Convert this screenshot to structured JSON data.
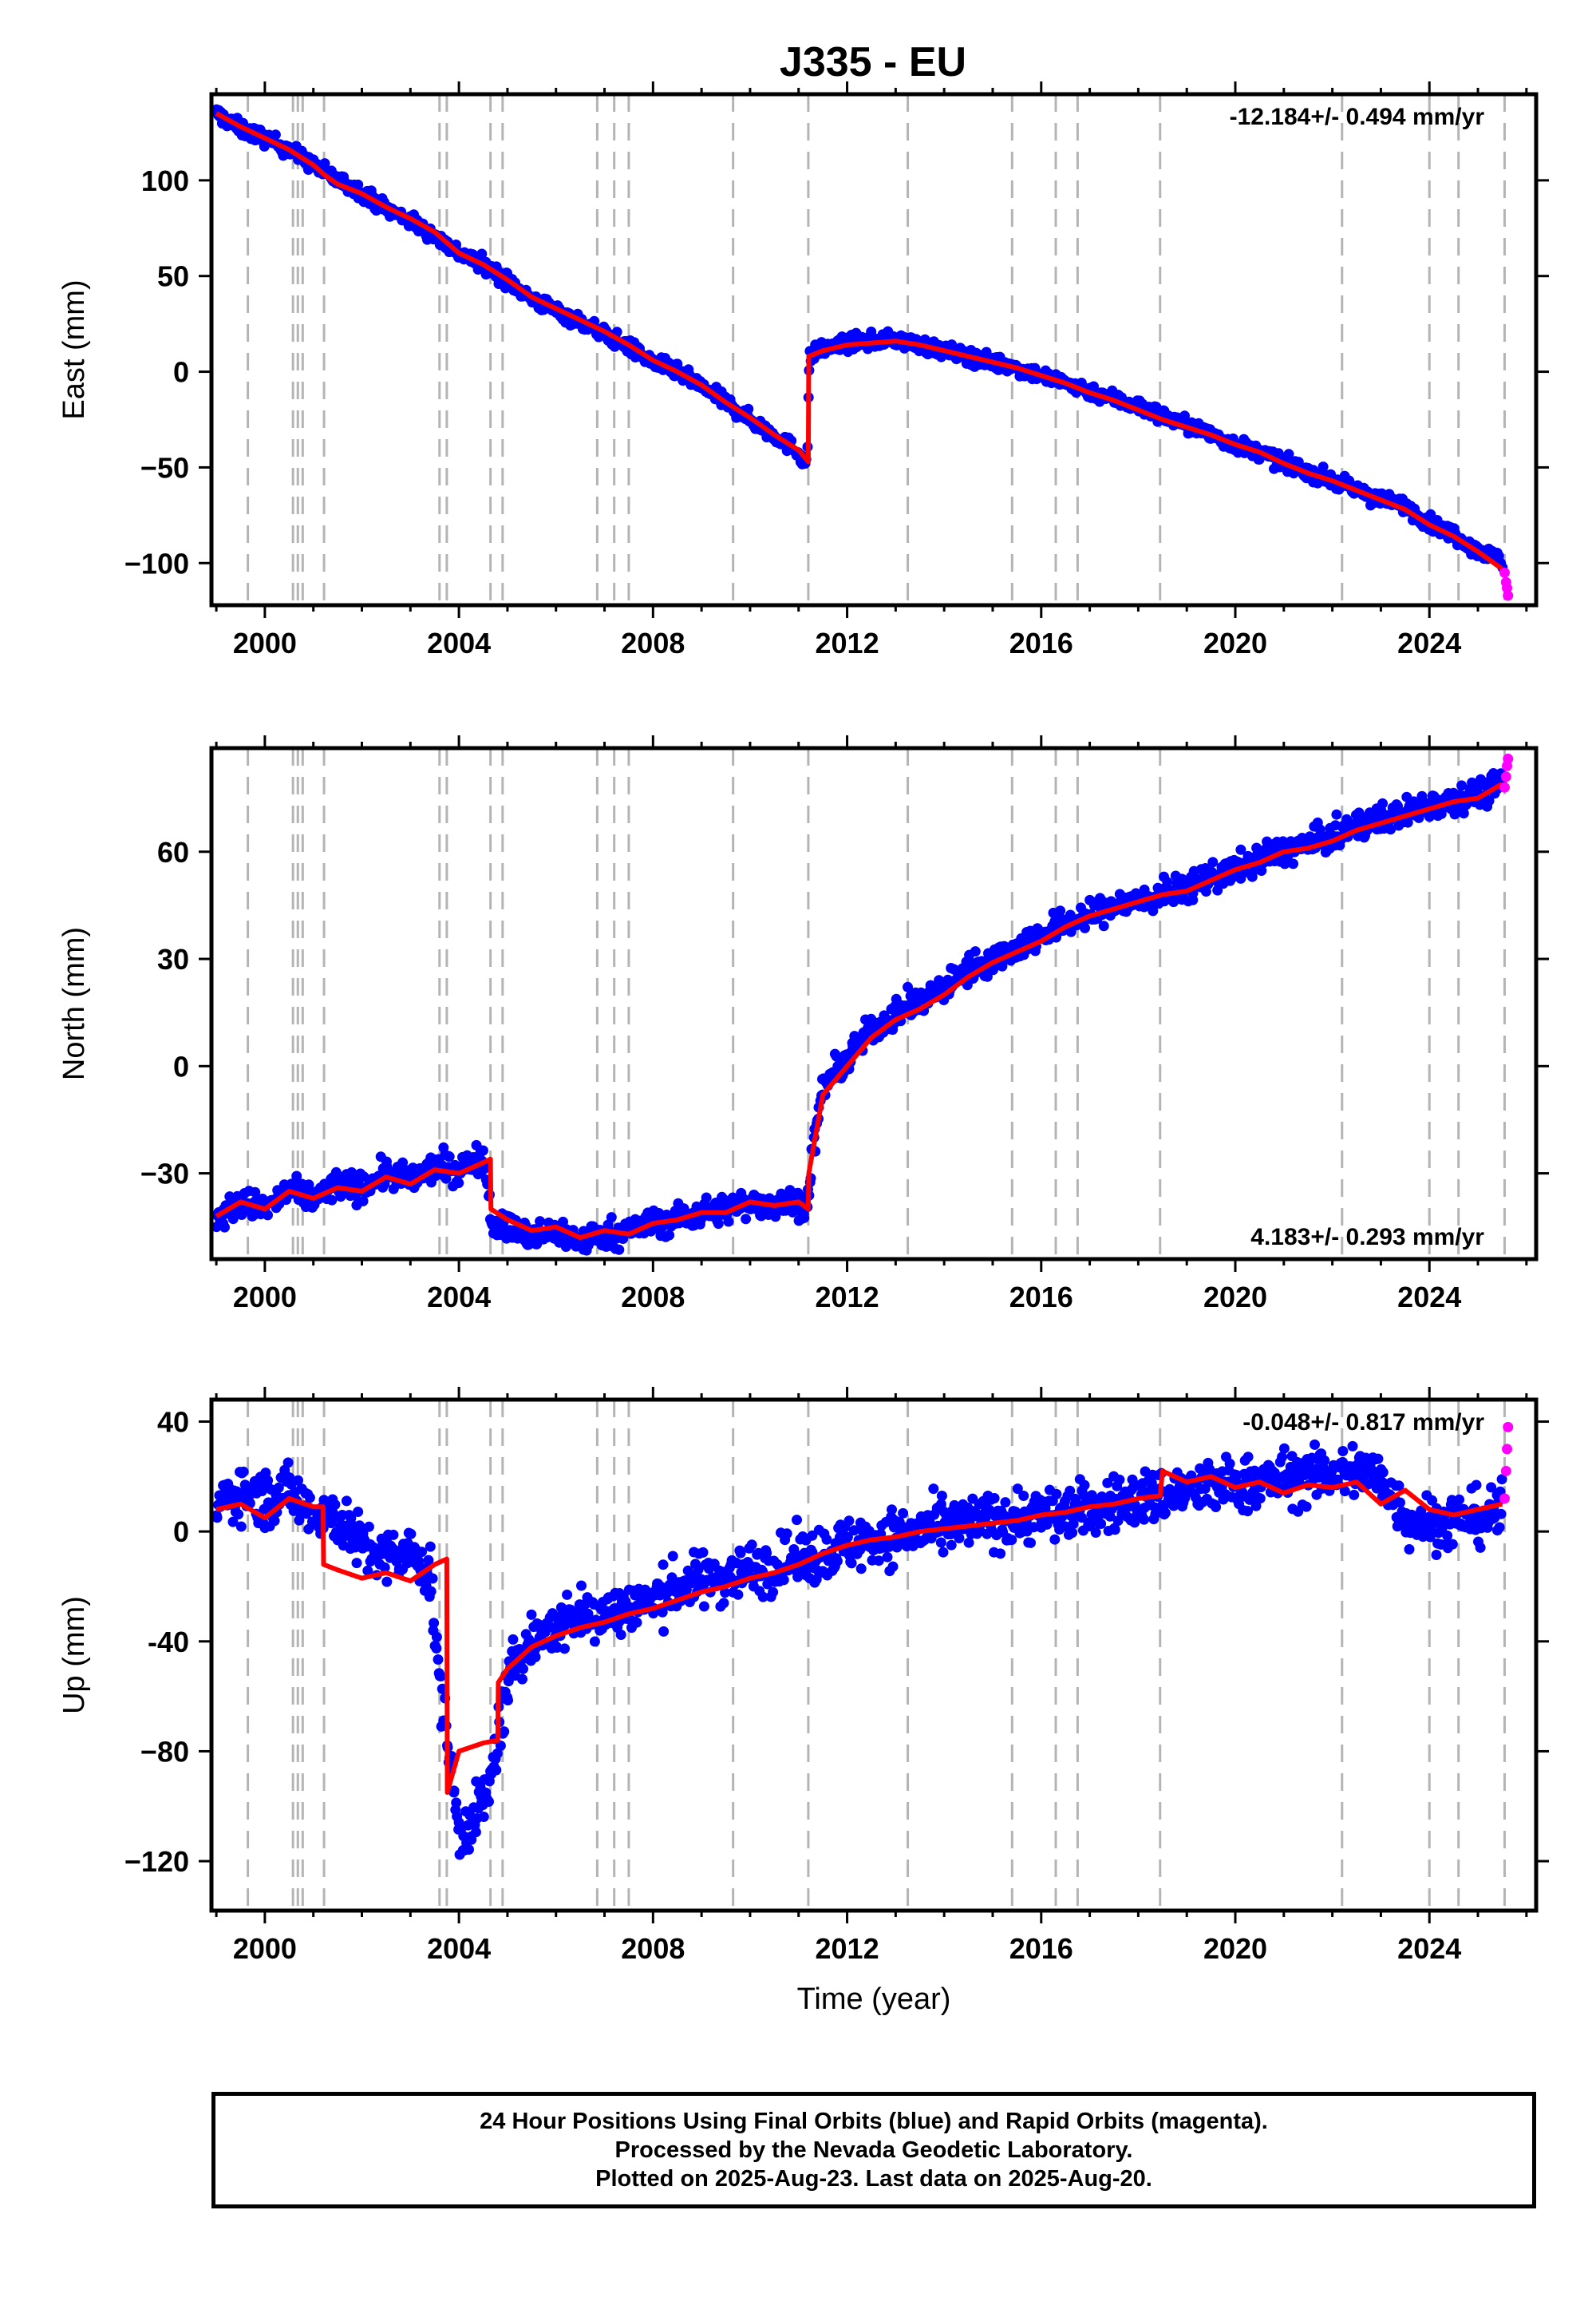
{
  "title": "J335 - EU",
  "colors": {
    "final_orbits": "#0000ff",
    "rapid_orbits": "#ff00ff",
    "model": "#ff0000",
    "event_lines": "#b4b4b4",
    "axes": "#000000"
  },
  "footer": {
    "line1": "24 Hour Positions Using Final Orbits (blue) and Rapid Orbits (magenta).",
    "line2": "Processed by the Nevada Geodetic Laboratory.",
    "line3": "Plotted on 2025-Aug-23. Last data on 2025-Aug-20."
  },
  "event_lines_years": [
    1999.65,
    2000.58,
    2000.68,
    2000.78,
    2001.22,
    2003.6,
    2003.75,
    2004.65,
    2004.9,
    2006.85,
    2007.2,
    2007.5,
    2009.65,
    2011.2,
    2013.25,
    2015.4,
    2016.3,
    2016.75,
    2018.45,
    2022.2,
    2024.0,
    2024.6,
    2025.55
  ],
  "chart_data": [
    {
      "type": "scatter",
      "id": "east",
      "ylabel": "East (mm)",
      "xlabel": "",
      "rate_label": "-12.184+/- 0.494 mm/yr",
      "rate_position": "top-right",
      "xlim": [
        1998.9,
        2026.2
      ],
      "ylim": [
        -122,
        145
      ],
      "xticks": [
        2000,
        2004,
        2008,
        2012,
        2016,
        2020,
        2024
      ],
      "yticks": [
        100,
        50,
        0,
        -50,
        -100
      ],
      "ytick_labels": [
        "100",
        "50",
        "0",
        "−50",
        "−100"
      ],
      "grid": false,
      "series": [
        {
          "kind": "final_orbits",
          "x": [
            1999.0,
            1999.5,
            2000.0,
            2000.5,
            2001.0,
            2001.5,
            2002.0,
            2002.5,
            2003.0,
            2003.5,
            2004.0,
            2004.5,
            2005.0,
            2005.5,
            2006.0,
            2006.5,
            2007.0,
            2007.5,
            2008.0,
            2008.5,
            2009.0,
            2009.5,
            2010.0,
            2010.5,
            2011.0,
            2011.18,
            2011.22,
            2011.5,
            2012.0,
            2012.5,
            2013.0,
            2013.5,
            2014.0,
            2014.5,
            2015.0,
            2015.5,
            2016.0,
            2016.5,
            2017.0,
            2017.5,
            2018.0,
            2018.5,
            2019.0,
            2019.5,
            2020.0,
            2020.5,
            2021.0,
            2021.5,
            2022.0,
            2022.5,
            2023.0,
            2023.5,
            2024.0,
            2024.5,
            2025.0,
            2025.5
          ],
          "y": [
            135,
            127,
            122,
            116,
            108,
            100,
            94,
            85,
            79,
            71,
            62,
            56,
            48,
            38,
            32,
            26,
            20,
            13,
            5,
            0,
            -8,
            -16,
            -25,
            -33,
            -42,
            -49,
            8,
            12,
            15,
            16,
            17,
            14,
            11,
            8,
            5,
            2,
            -2,
            -6,
            -10,
            -14,
            -18,
            -23,
            -28,
            -33,
            -38,
            -42,
            -48,
            -52,
            -57,
            -62,
            -67,
            -70,
            -79,
            -85,
            -93,
            -99
          ],
          "spread": 4
        },
        {
          "kind": "rapid_orbits",
          "x": [
            2025.55,
            2025.58,
            2025.6,
            2025.62
          ],
          "y": [
            -105,
            -110,
            -113,
            -117
          ]
        },
        {
          "kind": "model",
          "x": [
            1999.0,
            1999.5,
            2000.0,
            2000.5,
            2001.0,
            2001.22,
            2001.5,
            2002.0,
            2002.5,
            2003.0,
            2003.5,
            2004.0,
            2004.5,
            2005.0,
            2005.5,
            2006.0,
            2006.5,
            2007.0,
            2007.5,
            2008.0,
            2008.5,
            2009.0,
            2009.5,
            2010.0,
            2010.5,
            2011.0,
            2011.2,
            2011.21,
            2011.5,
            2012.0,
            2012.5,
            2013.0,
            2013.5,
            2014.0,
            2014.5,
            2015.0,
            2015.5,
            2016.0,
            2016.5,
            2017.0,
            2017.5,
            2018.0,
            2018.5,
            2019.0,
            2019.5,
            2020.0,
            2020.5,
            2021.0,
            2021.5,
            2022.0,
            2022.5,
            2023.0,
            2023.5,
            2024.0,
            2024.5,
            2025.0,
            2025.5
          ],
          "y": [
            135,
            128,
            122,
            116,
            108,
            103,
            98,
            93,
            86,
            80,
            73,
            62,
            56,
            48,
            39,
            33,
            27,
            21,
            14,
            6,
            0,
            -7,
            -16,
            -24,
            -33,
            -41,
            -47,
            8,
            11,
            14,
            15,
            16,
            14,
            11,
            8,
            5,
            2,
            -2,
            -6,
            -11,
            -15,
            -20,
            -25,
            -29,
            -33,
            -38,
            -42,
            -48,
            -53,
            -57,
            -62,
            -67,
            -72,
            -80,
            -86,
            -94,
            -103
          ]
        }
      ]
    },
    {
      "type": "scatter",
      "id": "north",
      "ylabel": "North (mm)",
      "xlabel": "",
      "rate_label": "4.183+/- 0.293 mm/yr",
      "rate_position": "bottom-right",
      "xlim": [
        1998.9,
        2026.2
      ],
      "ylim": [
        -54,
        89
      ],
      "xticks": [
        2000,
        2004,
        2008,
        2012,
        2016,
        2020,
        2024
      ],
      "yticks": [
        60,
        30,
        0,
        -30
      ],
      "ytick_labels": [
        "60",
        "30",
        "0",
        "−30"
      ],
      "grid": false,
      "series": [
        {
          "kind": "final_orbits",
          "x": [
            1999.0,
            1999.5,
            2000.0,
            2000.5,
            2001.0,
            2001.5,
            2002.0,
            2002.5,
            2003.0,
            2003.5,
            2004.0,
            2004.5,
            2004.7,
            2005.0,
            2005.5,
            2006.0,
            2006.5,
            2007.0,
            2007.5,
            2008.0,
            2008.5,
            2009.0,
            2009.5,
            2010.0,
            2010.5,
            2011.0,
            2011.18,
            2011.25,
            2011.5,
            2012.0,
            2012.5,
            2013.0,
            2013.5,
            2014.0,
            2014.5,
            2015.0,
            2015.5,
            2016.0,
            2016.5,
            2017.0,
            2017.5,
            2018.0,
            2018.5,
            2019.0,
            2019.5,
            2020.0,
            2020.5,
            2021.0,
            2021.5,
            2022.0,
            2022.5,
            2023.0,
            2023.5,
            2024.0,
            2024.5,
            2025.0,
            2025.5
          ],
          "y": [
            -43,
            -38,
            -40,
            -35,
            -37,
            -33,
            -34,
            -30,
            -32,
            -28,
            -29,
            -25,
            -44,
            -45,
            -48,
            -46,
            -49,
            -47,
            -46,
            -44,
            -43,
            -41,
            -40,
            -38,
            -39,
            -38,
            -40,
            -28,
            -6,
            2,
            10,
            15,
            18,
            22,
            27,
            30,
            33,
            37,
            40,
            42,
            45,
            46,
            48,
            50,
            53,
            55,
            58,
            60,
            62,
            64,
            67,
            69,
            71,
            73,
            75,
            76,
            79
          ],
          "spread": 4
        },
        {
          "kind": "rapid_orbits",
          "x": [
            2025.55,
            2025.58,
            2025.6,
            2025.62
          ],
          "y": [
            78,
            81,
            84,
            86
          ]
        },
        {
          "kind": "model",
          "x": [
            1999.0,
            1999.5,
            2000.0,
            2000.5,
            2001.0,
            2001.5,
            2002.0,
            2002.5,
            2003.0,
            2003.5,
            2004.0,
            2004.5,
            2004.65,
            2004.66,
            2005.0,
            2005.5,
            2006.0,
            2006.5,
            2007.0,
            2007.5,
            2008.0,
            2008.5,
            2009.0,
            2009.5,
            2010.0,
            2010.5,
            2011.0,
            2011.2,
            2011.21,
            2011.5,
            2012.0,
            2012.5,
            2013.0,
            2013.5,
            2014.0,
            2014.5,
            2015.0,
            2015.5,
            2016.0,
            2016.5,
            2017.0,
            2017.5,
            2018.0,
            2018.5,
            2019.0,
            2019.5,
            2020.0,
            2020.5,
            2021.0,
            2021.5,
            2022.0,
            2022.5,
            2023.0,
            2023.5,
            2024.0,
            2024.5,
            2025.0,
            2025.5
          ],
          "y": [
            -42,
            -38,
            -40,
            -35,
            -37,
            -34,
            -35,
            -31,
            -33,
            -29,
            -30,
            -27,
            -26,
            -40,
            -43,
            -46,
            -45,
            -48,
            -46,
            -47,
            -44,
            -43,
            -41,
            -41,
            -38,
            -39,
            -38,
            -40,
            -30,
            -8,
            0,
            8,
            13,
            16,
            20,
            25,
            29,
            32,
            35,
            39,
            42,
            44,
            46,
            48,
            49,
            52,
            55,
            57,
            60,
            61,
            63,
            66,
            68,
            70,
            72,
            74,
            75,
            79
          ]
        }
      ]
    },
    {
      "type": "scatter",
      "id": "up",
      "ylabel": "Up (mm)",
      "xlabel": "Time (year)",
      "rate_label": "-0.048+/- 0.817 mm/yr",
      "rate_position": "top-right",
      "xlim": [
        1998.9,
        2026.2
      ],
      "ylim": [
        -138,
        48
      ],
      "xticks": [
        2000,
        2004,
        2008,
        2012,
        2016,
        2020,
        2024
      ],
      "yticks": [
        40,
        0,
        -40,
        -80,
        -120
      ],
      "ytick_labels": [
        "40",
        "0",
        "-40",
        "−80",
        "−120"
      ],
      "grid": false,
      "series": [
        {
          "kind": "final_orbits",
          "x": [
            1999.0,
            1999.5,
            2000.0,
            2000.5,
            2001.0,
            2001.5,
            2002.0,
            2002.5,
            2003.0,
            2003.4,
            2003.6,
            2003.8,
            2004.0,
            2004.3,
            2004.6,
            2004.9,
            2005.2,
            2005.5,
            2006.0,
            2006.5,
            2007.0,
            2007.5,
            2008.0,
            2008.5,
            2009.0,
            2009.5,
            2010.0,
            2010.5,
            2011.0,
            2011.5,
            2012.0,
            2012.5,
            2013.0,
            2013.5,
            2014.0,
            2014.5,
            2015.0,
            2015.5,
            2016.0,
            2016.5,
            2017.0,
            2017.5,
            2018.0,
            2018.5,
            2019.0,
            2019.5,
            2020.0,
            2020.5,
            2021.0,
            2021.5,
            2022.0,
            2022.5,
            2023.0,
            2023.5,
            2024.0,
            2024.5,
            2025.0,
            2025.5
          ],
          "y": [
            10,
            15,
            12,
            14,
            8,
            5,
            -5,
            -10,
            -8,
            -15,
            -55,
            -80,
            -110,
            -105,
            -95,
            -65,
            -45,
            -40,
            -35,
            -30,
            -30,
            -27,
            -25,
            -20,
            -18,
            -16,
            -14,
            -12,
            -10,
            -8,
            -5,
            -3,
            -2,
            0,
            1,
            3,
            4,
            5,
            6,
            7,
            8,
            10,
            12,
            13,
            15,
            16,
            17,
            18,
            19,
            20,
            21,
            22,
            20,
            5,
            3,
            4,
            5,
            7
          ],
          "spread": 10
        },
        {
          "kind": "rapid_orbits",
          "x": [
            2025.55,
            2025.58,
            2025.6,
            2025.62
          ],
          "y": [
            12,
            22,
            30,
            38
          ]
        },
        {
          "kind": "model",
          "x": [
            1999.0,
            1999.5,
            2000.0,
            2000.5,
            2001.0,
            2001.2,
            2001.21,
            2001.5,
            2002.0,
            2002.5,
            2003.0,
            2003.5,
            2003.75,
            2003.76,
            2004.0,
            2004.5,
            2004.8,
            2004.81,
            2005.0,
            2005.5,
            2006.0,
            2006.5,
            2007.0,
            2007.5,
            2008.0,
            2008.5,
            2009.0,
            2009.5,
            2010.0,
            2010.5,
            2011.0,
            2011.5,
            2012.0,
            2012.5,
            2013.0,
            2013.5,
            2014.0,
            2014.5,
            2015.0,
            2015.5,
            2016.0,
            2016.5,
            2017.0,
            2017.5,
            2018.0,
            2018.45,
            2018.5,
            2019.0,
            2019.5,
            2020.0,
            2020.5,
            2021.0,
            2021.5,
            2022.0,
            2022.5,
            2023.0,
            2023.5,
            2024.0,
            2024.5,
            2025.0,
            2025.5
          ],
          "y": [
            8,
            10,
            5,
            12,
            9,
            9,
            -12,
            -14,
            -17,
            -15,
            -18,
            -12,
            -10,
            -95,
            -80,
            -77,
            -76,
            -55,
            -50,
            -42,
            -38,
            -35,
            -33,
            -30,
            -28,
            -25,
            -22,
            -20,
            -17,
            -15,
            -12,
            -8,
            -5,
            -3,
            -2,
            0,
            1,
            2,
            3,
            4,
            6,
            7,
            9,
            10,
            12,
            13,
            22,
            18,
            20,
            16,
            18,
            14,
            17,
            16,
            18,
            10,
            15,
            8,
            6,
            8,
            10
          ]
        }
      ]
    }
  ]
}
